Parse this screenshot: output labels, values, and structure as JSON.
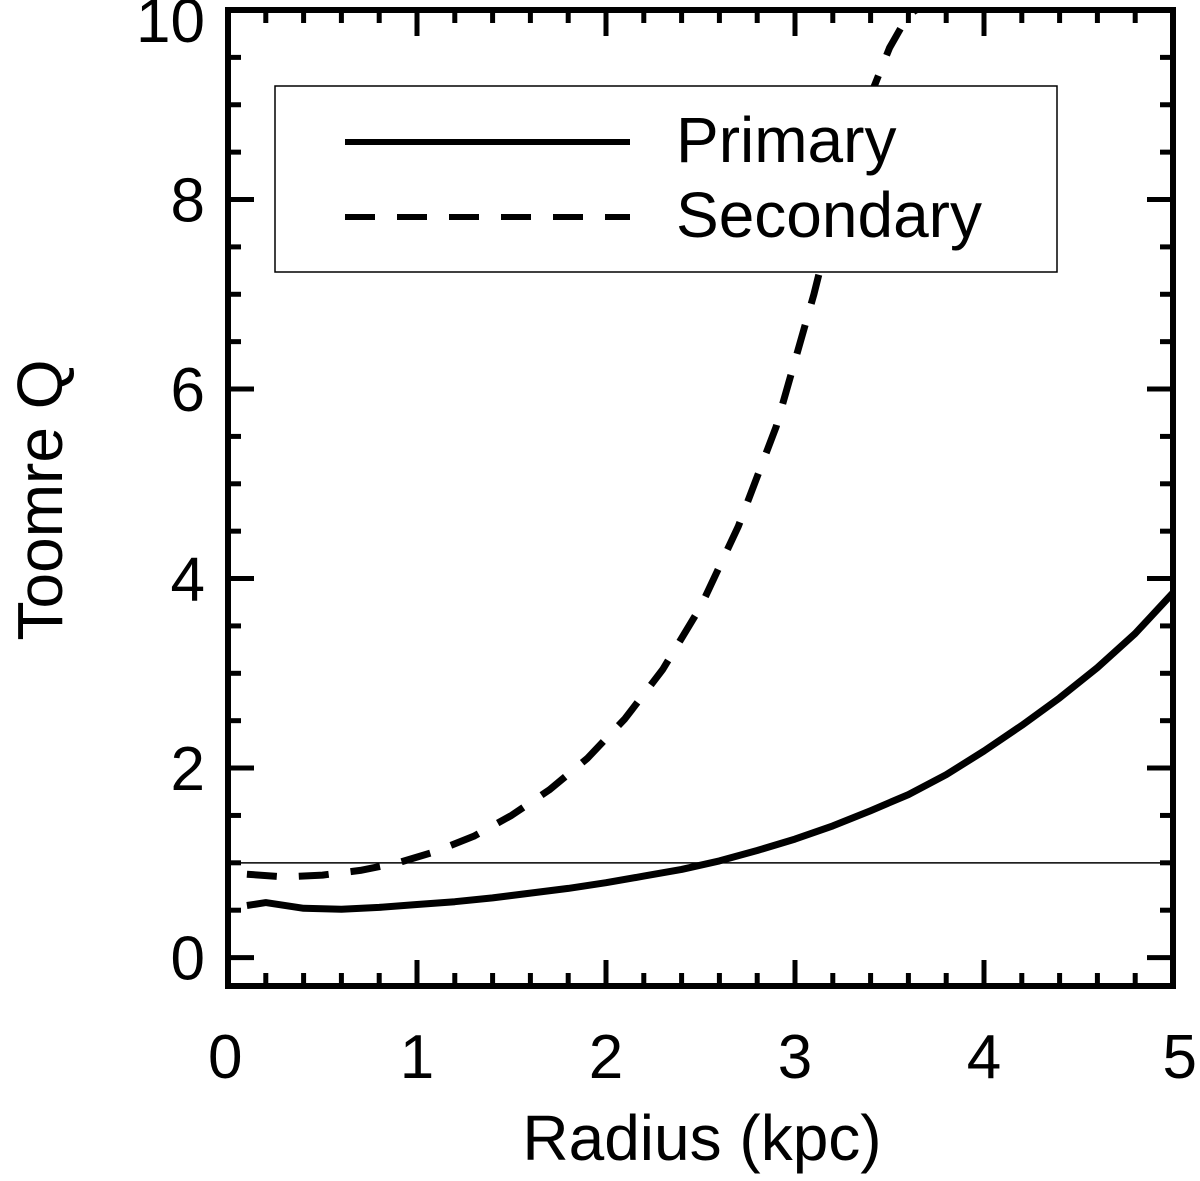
{
  "chart_data": {
    "type": "line",
    "title": "",
    "xlabel": "Radius (kpc)",
    "ylabel": "Toomre Q",
    "xlim": [
      0,
      5
    ],
    "ylim": [
      -0.3,
      10
    ],
    "x_ticks": [
      0,
      1,
      2,
      3,
      4,
      5
    ],
    "x_tick_labels": [
      "0",
      "1",
      "2",
      "3",
      "4",
      "5"
    ],
    "y_ticks": [
      0,
      2,
      4,
      6,
      8,
      10
    ],
    "y_tick_labels": [
      "0",
      "2",
      "4",
      "6",
      "8",
      "10"
    ],
    "grid": false,
    "legend_position": "top",
    "reference_line": {
      "y": 1.0,
      "style": "thin-solid"
    },
    "series": [
      {
        "name": "Primary",
        "style": "solid",
        "color": "#000000",
        "x": [
          0.1,
          0.2,
          0.4,
          0.6,
          0.8,
          1.0,
          1.2,
          1.4,
          1.6,
          1.8,
          2.0,
          2.2,
          2.4,
          2.6,
          2.8,
          3.0,
          3.2,
          3.4,
          3.6,
          3.8,
          4.0,
          4.2,
          4.4,
          4.6,
          4.8,
          5.0
        ],
        "y": [
          0.55,
          0.58,
          0.52,
          0.51,
          0.53,
          0.56,
          0.59,
          0.63,
          0.68,
          0.73,
          0.79,
          0.86,
          0.93,
          1.02,
          1.13,
          1.25,
          1.39,
          1.55,
          1.72,
          1.93,
          2.18,
          2.45,
          2.74,
          3.06,
          3.42,
          3.85
        ]
      },
      {
        "name": "Secondary",
        "style": "dashed",
        "color": "#000000",
        "x": [
          0.1,
          0.3,
          0.5,
          0.7,
          0.9,
          1.1,
          1.3,
          1.5,
          1.7,
          1.9,
          2.1,
          2.3,
          2.5,
          2.7,
          2.9,
          3.1,
          3.2,
          3.3,
          3.4,
          3.5,
          3.6,
          3.64
        ],
        "y": [
          0.88,
          0.85,
          0.87,
          0.92,
          1.0,
          1.12,
          1.28,
          1.5,
          1.77,
          2.1,
          2.52,
          3.04,
          3.7,
          4.55,
          5.6,
          7.0,
          7.8,
          8.5,
          9.1,
          9.6,
          9.95,
          10.0
        ]
      }
    ]
  }
}
